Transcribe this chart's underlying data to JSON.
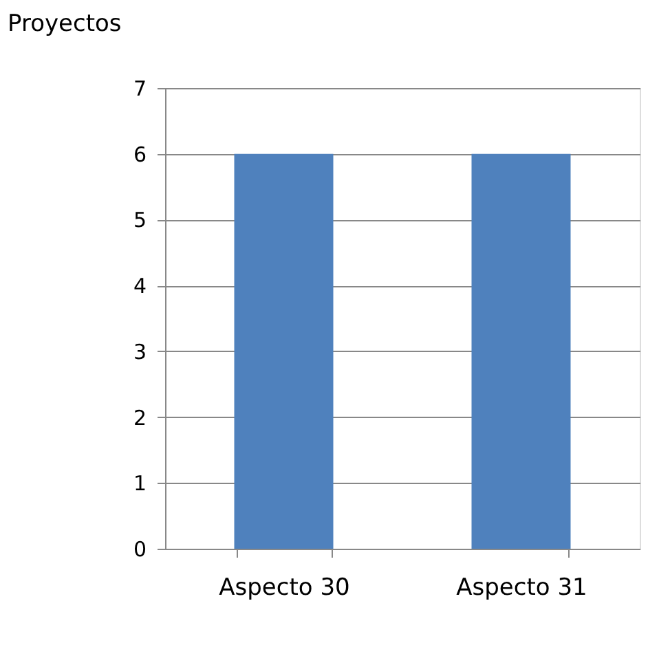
{
  "chart_data": {
    "type": "bar",
    "ylabel": "Proyectos",
    "categories": [
      "Aspecto 30",
      "Aspecto 31"
    ],
    "values": [
      6,
      6
    ],
    "color": "#4f81bd",
    "ylim": [
      0,
      7
    ],
    "yticks": [
      0,
      1,
      2,
      3,
      4,
      5,
      6,
      7
    ],
    "grid": "y"
  }
}
